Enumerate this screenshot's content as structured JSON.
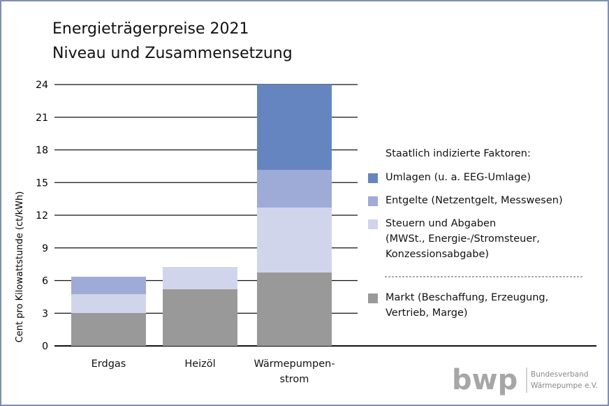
{
  "chart_data": {
    "type": "stacked-bar",
    "title": "Energieträgerpreise 2021",
    "subtitle": "Niveau und Zusammensetzung",
    "y_label": "Cent pro Kilowattstunde (ct/kWh)",
    "categories": [
      "Erdgas",
      "Heizöl",
      "Wärmepumpen-\nstrom"
    ],
    "series": [
      {
        "name": "Markt (Beschaffung, Erzeugung,\nVertrieb, Marge)",
        "color": "#999999",
        "values": [
          3.0,
          5.2,
          6.75
        ]
      },
      {
        "name": "Steuern und Abgaben\n(MWSt., Energie-/Stromsteuer,\nKonzessionsabgabe)",
        "color": "#d0d5eb",
        "values": [
          1.75,
          2.05,
          5.95
        ]
      },
      {
        "name": "Entgelte (Netzentgelt, Messwesen)",
        "color": "#9eabd7",
        "values": [
          1.6,
          0,
          3.45
        ]
      },
      {
        "name": "Umlagen (u. a. EEG-Umlage)",
        "color": "#6585c0",
        "values": [
          0,
          0,
          7.85
        ]
      }
    ],
    "legend_title": "Staatlich indizierte Faktoren:",
    "ylim": [
      0,
      24
    ],
    "yticks": [
      0,
      3,
      6,
      9,
      12,
      15,
      18,
      21,
      24
    ],
    "grid": true,
    "logo": {
      "mark": "bwp",
      "line1": "Bundesverband",
      "line2": "Wärmepumpe e.V."
    }
  }
}
